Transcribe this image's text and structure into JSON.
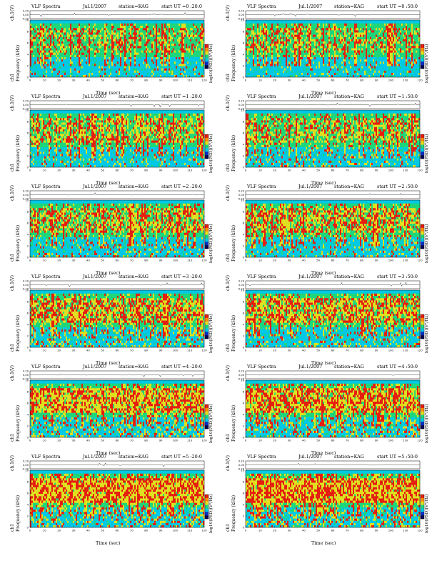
{
  "chart_data": [
    {
      "type": "heatmap",
      "title": "VLF Spectra",
      "date": "Jul.1/2007",
      "station": "station=KAG",
      "start": "start  UT  =0 :20:0",
      "ylabel_top": "ch.1(V)",
      "ylabel": "Frequency  (kHz)",
      "ylabel_side": "ch1",
      "xlabel": "Time  (sec)",
      "colorbar_label": "log10(PSD)(V²/Hz)",
      "xlim": [
        0,
        120
      ],
      "ylim": [
        0,
        10
      ],
      "top_ylim": [
        -0.2,
        0.2
      ]
    },
    {
      "type": "heatmap",
      "title": "VLF Spectra",
      "date": "Jul.1/2007",
      "station": "station=KAG",
      "start": "start  UT  =0 :50:0",
      "ylabel_top": "ch.1(V)",
      "ylabel": "Frequency  (kHz)",
      "ylabel_side": "ch1",
      "xlabel": "Time  (sec)",
      "colorbar_label": "log10(PSD)(V²/Hz)",
      "xlim": [
        0,
        120
      ],
      "ylim": [
        0,
        10
      ],
      "top_ylim": [
        -0.2,
        0.2
      ]
    },
    {
      "type": "heatmap",
      "title": "VLF Spectra",
      "date": "Jul.1/2007",
      "station": "station=KAG",
      "start": "start  UT  =1 :20:0",
      "ylabel_top": "ch.1(V)",
      "ylabel": "Frequency  (kHz)",
      "ylabel_side": "ch1",
      "xlabel": "Time  (sec)",
      "colorbar_label": "log10(PSD)(V²/Hz)",
      "xlim": [
        0,
        120
      ],
      "ylim": [
        0,
        10
      ],
      "top_ylim": [
        -0.2,
        0.2
      ]
    },
    {
      "type": "heatmap",
      "title": "VLF Spectra",
      "date": "Jul.1/2007",
      "station": "station=KAG",
      "start": "start  UT  =1 :50:0",
      "ylabel_top": "ch.1(V)",
      "ylabel": "Frequency  (kHz)",
      "ylabel_side": "ch1",
      "xlabel": "Time  (sec)",
      "colorbar_label": "log10(PSD)(V²/Hz)",
      "xlim": [
        0,
        120
      ],
      "ylim": [
        0,
        10
      ],
      "top_ylim": [
        -0.2,
        0.2
      ]
    },
    {
      "type": "heatmap",
      "title": "VLF Spectra",
      "date": "Jul.1/2007",
      "station": "station=KAG",
      "start": "start  UT  =2 :20:0",
      "ylabel_top": "ch.1(V)",
      "ylabel": "Frequency  (kHz)",
      "ylabel_side": "ch1",
      "xlabel": "Time  (sec)",
      "colorbar_label": "log10(PSD)(V²/Hz)",
      "xlim": [
        0,
        120
      ],
      "ylim": [
        0,
        10
      ],
      "top_ylim": [
        -0.2,
        0.2
      ]
    },
    {
      "type": "heatmap",
      "title": "VLF Spectra",
      "date": "Jul.1/2007",
      "station": "station=KAG",
      "start": "start  UT  =2 :50:0",
      "ylabel_top": "ch.1(V)",
      "ylabel": "Frequency  (kHz)",
      "ylabel_side": "ch1",
      "xlabel": "Time  (sec)",
      "colorbar_label": "log10(PSD)(V²/Hz)",
      "xlim": [
        0,
        120
      ],
      "ylim": [
        0,
        10
      ],
      "top_ylim": [
        -0.2,
        0.2
      ]
    },
    {
      "type": "heatmap",
      "title": "VLF Spectra",
      "date": "Jul.1/2007",
      "station": "station=KAG",
      "start": "start  UT  =3 :20:0",
      "ylabel_top": "ch.1(V)",
      "ylabel": "Frequency  (kHz)",
      "ylabel_side": "ch1",
      "xlabel": "Time  (sec)",
      "colorbar_label": "log10(PSD)(V²/Hz)",
      "xlim": [
        0,
        120
      ],
      "ylim": [
        0,
        10
      ],
      "top_ylim": [
        -0.2,
        0.2
      ]
    },
    {
      "type": "heatmap",
      "title": "VLF Spectra",
      "date": "Jul.1/2007",
      "station": "station=KAG",
      "start": "start  UT  =3 :50:0",
      "ylabel_top": "ch.1(V)",
      "ylabel": "Frequency  (kHz)",
      "ylabel_side": "ch1",
      "xlabel": "Time  (sec)",
      "colorbar_label": "log10(PSD)(V²/Hz)",
      "xlim": [
        0,
        120
      ],
      "ylim": [
        0,
        10
      ],
      "top_ylim": [
        -0.2,
        0.2
      ]
    },
    {
      "type": "heatmap",
      "title": "VLF Spectra",
      "date": "Jul.1/2007",
      "station": "station=KAG",
      "start": "start  UT  =4 :20:0",
      "ylabel_top": "ch.1(V)",
      "ylabel": "Frequency  (kHz)",
      "ylabel_side": "ch1",
      "xlabel": "Time  (sec)",
      "colorbar_label": "log10(PSD)(V²/Hz)",
      "xlim": [
        0,
        120
      ],
      "ylim": [
        0,
        10
      ],
      "top_ylim": [
        -0.2,
        0.2
      ]
    },
    {
      "type": "heatmap",
      "title": "VLF Spectra",
      "date": "Jul.1/2007",
      "station": "station=KAG",
      "start": "start  UT  =4 :50:0",
      "ylabel_top": "ch.1(V)",
      "ylabel": "Frequency  (kHz)",
      "ylabel_side": "ch1",
      "xlabel": "Time  (sec)",
      "colorbar_label": "log10(PSD)(V²/Hz)",
      "xlim": [
        0,
        120
      ],
      "ylim": [
        0,
        10
      ],
      "top_ylim": [
        -0.2,
        0.2
      ]
    },
    {
      "type": "heatmap",
      "title": "VLF Spectra",
      "date": "Jul.1/2007",
      "station": "station=KAG",
      "start": "start  UT  =5 :20:0",
      "ylabel_top": "ch.1(V)",
      "ylabel": "Frequency  (kHz)",
      "ylabel_side": "ch1",
      "xlabel": "Time  (sec)",
      "colorbar_label": "log10(PSD)(V²/Hz)",
      "xlim": [
        0,
        120
      ],
      "ylim": [
        0,
        10
      ],
      "top_ylim": [
        -0.2,
        0.2
      ]
    },
    {
      "type": "heatmap",
      "title": "VLF Spectra",
      "date": "Jul.1/2007",
      "station": "station=KAG",
      "start": "start  UT  =5 :50:0",
      "ylabel_top": "ch.1(V)",
      "ylabel": "Frequency  (kHz)",
      "ylabel_side": "ch1",
      "xlabel": "Time  (sec)",
      "colorbar_label": "log10(PSD)(V²/Hz)",
      "xlim": [
        0,
        120
      ],
      "ylim": [
        0,
        10
      ],
      "top_ylim": [
        -0.2,
        0.2
      ]
    }
  ],
  "x_ticks": [
    0,
    10,
    20,
    30,
    40,
    50,
    60,
    70,
    80,
    90,
    100,
    110,
    120
  ],
  "y_ticks": [
    0,
    2,
    4,
    6,
    8,
    10
  ],
  "top_ticks": [
    "0.20",
    "0.00",
    "-0.20"
  ],
  "colors": {
    "bg": "#00c8e6",
    "low": "#1fd67a",
    "mid": "#e0e020",
    "high": "#e61e10",
    "blue": "#0032c8"
  }
}
